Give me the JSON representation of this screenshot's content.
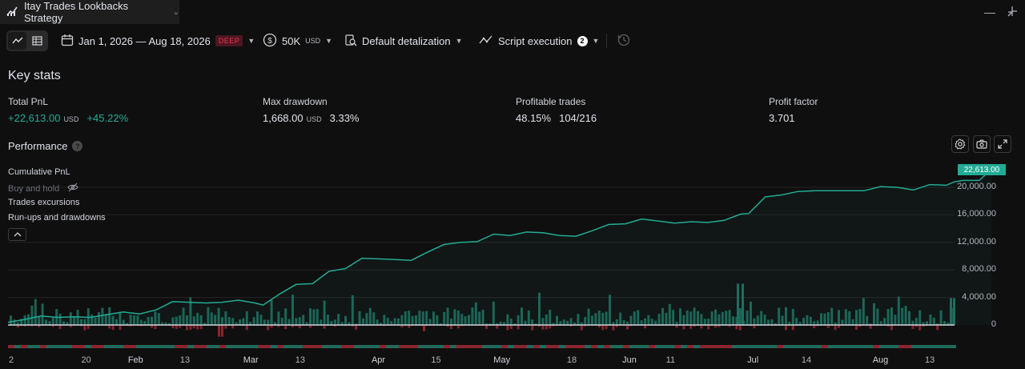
{
  "window": {
    "title": "Itay Trades Lookbacks Strategy",
    "minimize_glyph": "—",
    "restore_glyph": "⌐"
  },
  "toolbar": {
    "date_range": "Jan 1, 2026 — Aug 18, 2026",
    "deep_badge": "DEEP",
    "capital": "50K",
    "capital_unit": "USD",
    "detalization": "Default detalization",
    "script_execution": "Script execution",
    "script_execution_count": "2"
  },
  "key_stats": {
    "title": "Key stats",
    "total_pnl": {
      "label": "Total PnL",
      "value": "+22,613.00",
      "unit": "USD",
      "percent": "+45.22%"
    },
    "max_drawdown": {
      "label": "Max drawdown",
      "value": "1,668.00",
      "unit": "USD",
      "percent": "3.33%"
    },
    "profitable_trades": {
      "label": "Profitable trades",
      "percent": "48.15%",
      "ratio": "104/216"
    },
    "profit_factor": {
      "label": "Profit factor",
      "value": "3.701"
    }
  },
  "performance": {
    "title": "Performance",
    "help_glyph": "?",
    "legend": {
      "cumulative_pnl": "Cumulative PnL",
      "buy_and_hold": "Buy and hold",
      "trades_excursions": "Trades excursions",
      "runups_drawdowns": "Run-ups and drawdowns"
    },
    "last_value_badge": "22,613.00"
  },
  "colors": {
    "accent": "#22ab94",
    "negative": "#f23645",
    "background": "#0f0f0f"
  },
  "chart_data": {
    "type": "line",
    "y_ticks": [
      "20,000.00",
      "16,000.00",
      "12,000.00",
      "8,000.00",
      "4,000.00",
      "0"
    ],
    "ylim": [
      -1500,
      23500
    ],
    "x_ticks": [
      {
        "label": "2",
        "major": false
      },
      {
        "label": "20",
        "major": false
      },
      {
        "label": "Feb",
        "major": true
      },
      {
        "label": "13",
        "major": false
      },
      {
        "label": "Mar",
        "major": true
      },
      {
        "label": "13",
        "major": false
      },
      {
        "label": "Apr",
        "major": true
      },
      {
        "label": "15",
        "major": false
      },
      {
        "label": "May",
        "major": true
      },
      {
        "label": "18",
        "major": false
      },
      {
        "label": "Jun",
        "major": true
      },
      {
        "label": "11",
        "major": false
      },
      {
        "label": "Jul",
        "major": true
      },
      {
        "label": "14",
        "major": false
      },
      {
        "label": "Aug",
        "major": true
      },
      {
        "label": "13",
        "major": false
      }
    ],
    "x_tick_days": [
      1,
      19,
      31,
      43,
      59,
      71,
      90,
      104,
      120,
      137,
      151,
      161,
      181,
      194,
      212,
      224
    ],
    "x_range_days": [
      0,
      230
    ],
    "series": [
      {
        "name": "Cumulative PnL",
        "points": [
          [
            0,
            400
          ],
          [
            4,
            800
          ],
          [
            8,
            1300
          ],
          [
            12,
            1100
          ],
          [
            16,
            1200
          ],
          [
            20,
            1100
          ],
          [
            24,
            1500
          ],
          [
            28,
            1900
          ],
          [
            32,
            1600
          ],
          [
            36,
            2200
          ],
          [
            40,
            3400
          ],
          [
            44,
            3300
          ],
          [
            48,
            3200
          ],
          [
            52,
            3300
          ],
          [
            56,
            3600
          ],
          [
            60,
            3200
          ],
          [
            62,
            2900
          ],
          [
            66,
            4500
          ],
          [
            70,
            5900
          ],
          [
            74,
            6000
          ],
          [
            78,
            7800
          ],
          [
            82,
            8200
          ],
          [
            86,
            9700
          ],
          [
            90,
            9600
          ],
          [
            94,
            9500
          ],
          [
            98,
            9400
          ],
          [
            102,
            10600
          ],
          [
            106,
            11700
          ],
          [
            110,
            12000
          ],
          [
            114,
            12100
          ],
          [
            118,
            13200
          ],
          [
            122,
            13000
          ],
          [
            126,
            13500
          ],
          [
            130,
            13400
          ],
          [
            134,
            13000
          ],
          [
            138,
            12900
          ],
          [
            142,
            13700
          ],
          [
            146,
            14600
          ],
          [
            150,
            14700
          ],
          [
            154,
            15400
          ],
          [
            158,
            15100
          ],
          [
            162,
            14800
          ],
          [
            166,
            15000
          ],
          [
            170,
            14900
          ],
          [
            174,
            15200
          ],
          [
            178,
            16100
          ],
          [
            180,
            16200
          ],
          [
            184,
            18600
          ],
          [
            188,
            18900
          ],
          [
            192,
            19400
          ],
          [
            196,
            19500
          ],
          [
            200,
            19500
          ],
          [
            204,
            19500
          ],
          [
            208,
            19500
          ],
          [
            212,
            20100
          ],
          [
            216,
            20000
          ],
          [
            220,
            19600
          ],
          [
            224,
            20400
          ],
          [
            228,
            20300
          ],
          [
            230,
            20800
          ],
          [
            232,
            21000
          ],
          [
            236,
            21000
          ],
          [
            239,
            22613
          ]
        ]
      }
    ]
  }
}
